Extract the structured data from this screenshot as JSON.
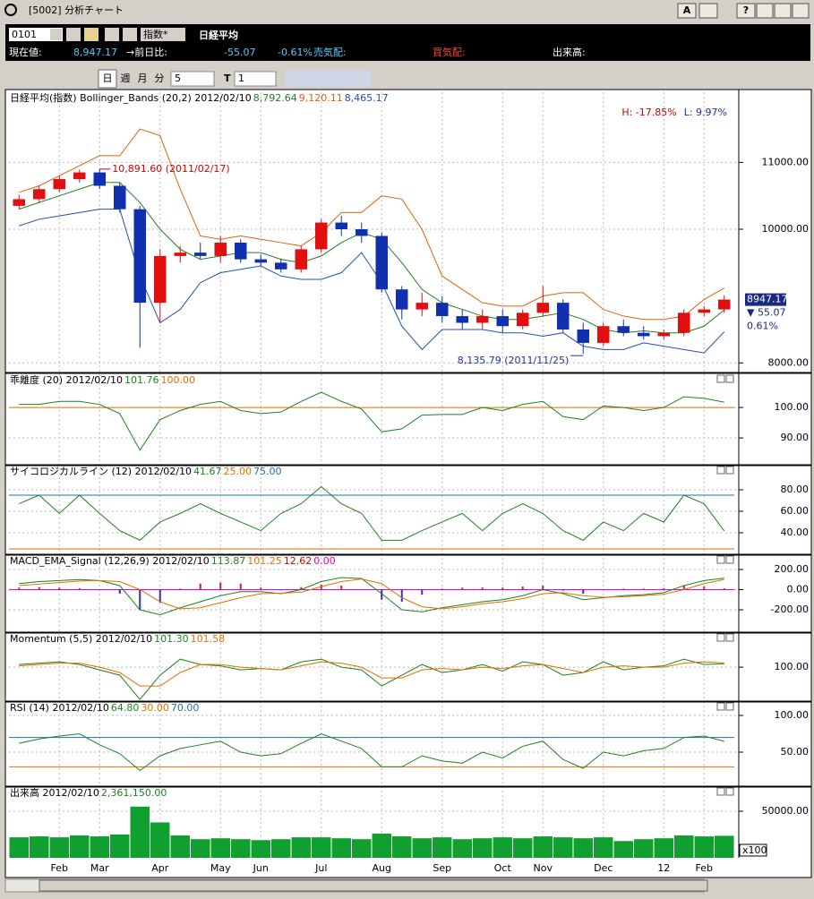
{
  "window": {
    "title": "[5002] 分析チャート",
    "font_button": "A",
    "help_button": "?"
  },
  "quote_bar": {
    "code": "0101",
    "market": "指数*",
    "name": "日経平均",
    "price_label": "現在値:",
    "price": "8,947.17",
    "change_label": "→前日比:",
    "change": "-55.07",
    "change_pct": "-0.61%",
    "ask_label": "売気配:",
    "bid_label": "買気配:",
    "volume_label": "出来高:"
  },
  "toolbar": {
    "day": "日",
    "week": "週",
    "month": "月",
    "minute": "分",
    "interval": "5",
    "t": "T",
    "count": "1"
  },
  "chart_data": [
    {
      "type": "candlestick",
      "title": "日経平均(指数) Bollinger_Bands (20,2) 2012/02/10",
      "header_values": [
        "8,792.64",
        "9,120.11",
        "8,465.17"
      ],
      "header_colors": [
        "#208020",
        "#e06010",
        "#2050b0"
      ],
      "range_labels": [
        "H: -17.85%",
        "L: 9.97%"
      ],
      "range_colors": [
        "#d00000",
        "#2030a0"
      ],
      "high_label": "10,891.60 (2011/02/17)",
      "high_label_color": "#d00000",
      "low_label": "8,135.79 (2011/11/25)",
      "low_label_color": "#2030a0",
      "last_label": "8947.17",
      "change_label": "▼ 55.07",
      "pct_label": "0.61%",
      "label_color": "#1a2a80",
      "up_color": "#e01010",
      "down_color": "#1030b0",
      "open": [
        10350,
        10450,
        10600,
        10750,
        10850,
        10650,
        10300,
        8900,
        9600,
        9650,
        9600,
        9800,
        9550,
        9500,
        9400,
        9700,
        10100,
        10000,
        9900,
        9100,
        8800,
        8900,
        8700,
        8600,
        8700,
        8550,
        8750,
        8900,
        8500,
        8300,
        8550,
        8450,
        8400,
        8450,
        8750,
        8800
      ],
      "high": [
        10520,
        10650,
        10800,
        10891.6,
        10900,
        10700,
        10350,
        9700,
        9750,
        9800,
        9900,
        9850,
        9620,
        9560,
        9750,
        10150,
        10200,
        10100,
        9950,
        9150,
        9050,
        9000,
        8800,
        8800,
        8800,
        8800,
        9150,
        8950,
        8600,
        8600,
        8650,
        8550,
        8500,
        8800,
        8850,
        9010
      ],
      "low": [
        10300,
        10400,
        10550,
        10700,
        10600,
        10250,
        8227,
        8600,
        9500,
        9550,
        9500,
        9500,
        9450,
        9350,
        9350,
        9650,
        9900,
        9800,
        9050,
        8650,
        8700,
        8600,
        8500,
        8500,
        8450,
        8500,
        8700,
        8450,
        8135.79,
        8250,
        8400,
        8350,
        8350,
        8400,
        8700,
        8750
      ],
      "close": [
        10450,
        10600,
        10750,
        10850,
        10650,
        10300,
        8900,
        9600,
        9650,
        9600,
        9800,
        9550,
        9500,
        9400,
        9700,
        10100,
        10000,
        9900,
        9100,
        8800,
        8900,
        8700,
        8600,
        8700,
        8550,
        8750,
        8900,
        8500,
        8300,
        8550,
        8450,
        8400,
        8450,
        8750,
        8800,
        8947.17
      ],
      "series": [
        {
          "color": "#e06010",
          "values": [
            10550,
            10650,
            10800,
            10950,
            11100,
            11100,
            11500,
            11400,
            10600,
            9900,
            9850,
            9900,
            9850,
            9800,
            9750,
            9950,
            10250,
            10250,
            10500,
            10450,
            10000,
            9300,
            9100,
            8900,
            8850,
            8850,
            9000,
            9050,
            9050,
            8800,
            8700,
            8650,
            8650,
            8700,
            8950,
            9120.11
          ]
        },
        {
          "color": "#208020",
          "values": [
            10300,
            10400,
            10500,
            10600,
            10700,
            10700,
            10400,
            10000,
            9700,
            9550,
            9600,
            9650,
            9650,
            9550,
            9500,
            9600,
            9800,
            9950,
            9850,
            9500,
            9100,
            8900,
            8800,
            8700,
            8650,
            8650,
            8700,
            8750,
            8650,
            8500,
            8450,
            8480,
            8450,
            8450,
            8550,
            8792.64
          ]
        },
        {
          "color": "#2050b0",
          "values": [
            10050,
            10150,
            10200,
            10250,
            10300,
            10300,
            9300,
            8600,
            8800,
            9200,
            9350,
            9400,
            9450,
            9300,
            9250,
            9250,
            9350,
            9650,
            9200,
            8550,
            8200,
            8500,
            8500,
            8500,
            8450,
            8450,
            8400,
            8450,
            8250,
            8200,
            8200,
            8300,
            8250,
            8200,
            8150,
            8465.17
          ]
        }
      ],
      "ylim": [
        7870,
        12050
      ],
      "yticks": [
        {
          "value": 8000,
          "label": "8000.00"
        },
        {
          "value": 10000,
          "label": "10000.00"
        },
        {
          "value": 11000,
          "label": "11000.00"
        }
      ]
    },
    {
      "type": "line",
      "title": "乖離度 (20) 2012/02/10",
      "header_values": [
        "101.76",
        "100.00"
      ],
      "header_colors": [
        "#208020",
        "#e07000"
      ],
      "series": [
        {
          "color": "#208020",
          "values": [
            101,
            101,
            102,
            102,
            101,
            98,
            86,
            96,
            99,
            101,
            102,
            99,
            98,
            98.5,
            102,
            105,
            102,
            99.5,
            92,
            93,
            97.5,
            97.7,
            97.7,
            100,
            99,
            101,
            102,
            97,
            96,
            100.5,
            100,
            99,
            100,
            103.5,
            103,
            101.76
          ]
        }
      ],
      "reference_lines": [
        {
          "value": 100,
          "color": "#e07000"
        }
      ],
      "ylim": [
        81.5,
        110.9
      ],
      "yticks": [
        {
          "value": 90,
          "label": "90.00"
        },
        {
          "value": 100,
          "label": "100.00"
        }
      ]
    },
    {
      "type": "line",
      "title": "サイコロジカルライン (12) 2012/02/10",
      "header_values": [
        "41.67",
        "25.00",
        "75.00"
      ],
      "header_colors": [
        "#208020",
        "#e07000",
        "#2070a0"
      ],
      "series": [
        {
          "color": "#208020",
          "values": [
            67,
            75,
            58,
            75,
            58,
            42,
            33,
            50,
            58,
            67,
            58,
            50,
            42,
            58,
            67,
            83,
            67,
            58,
            33,
            33,
            42,
            50,
            58,
            42,
            58,
            67,
            58,
            42,
            33,
            50,
            42,
            58,
            50,
            75,
            67,
            41.67
          ]
        }
      ],
      "reference_lines": [
        {
          "value": 25,
          "color": "#e07000"
        },
        {
          "value": 75,
          "color": "#2070a0"
        }
      ],
      "ylim": [
        20.8,
        102.5
      ],
      "yticks": [
        {
          "value": 40,
          "label": "40.00"
        },
        {
          "value": 60,
          "label": "60.00"
        },
        {
          "value": 80,
          "label": "80.00"
        }
      ]
    },
    {
      "type": "line",
      "title": "MACD_EMA_Signal (12,26,9) 2012/02/10",
      "header_values": [
        "113.87",
        "101.25",
        "12.62",
        "0.00"
      ],
      "header_colors": [
        "#208020",
        "#e07000",
        "#d00000",
        "#e000e0"
      ],
      "series": [
        {
          "type": "bar",
          "color": "#d02020",
          "negative_color": "#3030c0",
          "values": [
            20,
            25,
            20,
            15,
            0,
            -40,
            -200,
            -130,
            10,
            60,
            70,
            60,
            20,
            -5,
            25,
            50,
            40,
            5,
            -100,
            -120,
            -50,
            10,
            20,
            20,
            20,
            30,
            40,
            -10,
            -40,
            -5,
            10,
            10,
            15,
            40,
            30,
            12.62
          ]
        },
        {
          "color": "#208020",
          "values": [
            60,
            80,
            90,
            100,
            90,
            40,
            -200,
            -250,
            -180,
            -120,
            -60,
            -20,
            -20,
            -40,
            0,
            80,
            120,
            110,
            -40,
            -200,
            -220,
            -180,
            -150,
            -120,
            -100,
            -60,
            0,
            -40,
            -100,
            -80,
            -60,
            -50,
            -30,
            40,
            90,
            113.87
          ]
        },
        {
          "color": "#e07000",
          "values": [
            40,
            55,
            70,
            85,
            90,
            80,
            0,
            -120,
            -190,
            -180,
            -130,
            -80,
            -40,
            -35,
            -25,
            30,
            80,
            105,
            60,
            -80,
            -170,
            -190,
            -170,
            -140,
            -120,
            -90,
            -40,
            -30,
            -60,
            -75,
            -70,
            -60,
            -45,
            0,
            60,
            101.25
          ]
        }
      ],
      "reference_lines": [
        {
          "value": 0,
          "color": "#e000e0"
        }
      ],
      "ylim": [
        -413,
        342
      ],
      "yticks": [
        {
          "value": -200,
          "label": "-200.00"
        },
        {
          "value": 0,
          "label": "0.00"
        },
        {
          "value": 200,
          "label": "200.00"
        }
      ]
    },
    {
      "type": "line",
      "title": "Momentum (5,5) 2012/02/10",
      "header_values": [
        "101.30",
        "101.58"
      ],
      "header_colors": [
        "#208020",
        "#e07000"
      ],
      "series": [
        {
          "color": "#208020",
          "values": [
            101,
            101.5,
            102,
            101,
            99,
            97,
            88,
            97,
            103,
            101,
            100.5,
            99,
            99.5,
            99,
            102,
            103,
            100,
            99,
            93,
            97,
            101,
            98,
            99,
            101,
            98.5,
            102,
            101,
            97,
            98,
            102,
            99,
            100,
            100.5,
            103,
            101,
            101.3
          ]
        },
        {
          "color": "#e07000",
          "values": [
            100.5,
            101,
            101.5,
            101.5,
            100,
            98,
            93,
            93,
            98,
            101,
            101,
            100,
            99.5,
            99,
            100.5,
            102,
            101.5,
            100,
            96,
            96,
            99,
            99.5,
            99,
            100,
            99.5,
            100.5,
            101,
            99.5,
            98,
            100,
            100.5,
            100,
            100,
            101.5,
            102,
            101.58
          ]
        }
      ],
      "ylim": [
        87.7,
        112.7
      ],
      "yticks": [
        {
          "value": 100,
          "label": "100.00"
        }
      ]
    },
    {
      "type": "line",
      "title": "RSI (14) 2012/02/10",
      "header_values": [
        "64.80",
        "30.00",
        "70.00"
      ],
      "header_colors": [
        "#208020",
        "#e07000",
        "#2070a0"
      ],
      "series": [
        {
          "color": "#208020",
          "values": [
            62,
            68,
            72,
            75,
            60,
            48,
            25,
            45,
            55,
            60,
            65,
            50,
            45,
            48,
            62,
            75,
            65,
            55,
            30,
            30,
            45,
            38,
            35,
            50,
            42,
            58,
            65,
            40,
            28,
            50,
            45,
            52,
            55,
            70,
            72,
            64.8
          ]
        }
      ],
      "reference_lines": [
        {
          "value": 30,
          "color": "#e07000"
        },
        {
          "value": 70,
          "color": "#2070a0"
        }
      ],
      "ylim": [
        4.9,
        118.3
      ],
      "yticks": [
        {
          "value": 50,
          "label": "50.00"
        },
        {
          "value": 100,
          "label": "100.00"
        }
      ]
    },
    {
      "type": "bar",
      "title": "出来高 2012/02/10",
      "header_values": [
        "2,361,150.00"
      ],
      "header_colors": [
        "#208020"
      ],
      "volume_unit": "x100",
      "categories": [
        null,
        null,
        "Feb",
        null,
        "Mar",
        null,
        null,
        "Apr",
        null,
        null,
        "May",
        null,
        "Jun",
        null,
        null,
        "Jul",
        null,
        null,
        "Aug",
        null,
        null,
        "Sep",
        null,
        null,
        "Oct",
        null,
        "Nov",
        null,
        null,
        "Dec",
        null,
        null,
        "12",
        null,
        "Feb",
        null
      ],
      "series": [
        {
          "color": "#10a030",
          "values": [
            22000,
            23000,
            22000,
            24000,
            23000,
            25000,
            55000,
            38000,
            24000,
            20000,
            21000,
            20000,
            19000,
            20000,
            22000,
            22000,
            21000,
            20000,
            26000,
            23000,
            21000,
            22000,
            20000,
            21000,
            22000,
            21000,
            23000,
            22000,
            21000,
            22000,
            18000,
            20000,
            21000,
            24000,
            23000,
            23611.5
          ]
        }
      ],
      "ylim": [
        0,
        75960
      ],
      "yticks": [
        {
          "value": 50000,
          "label": "50000.00"
        }
      ]
    }
  ]
}
